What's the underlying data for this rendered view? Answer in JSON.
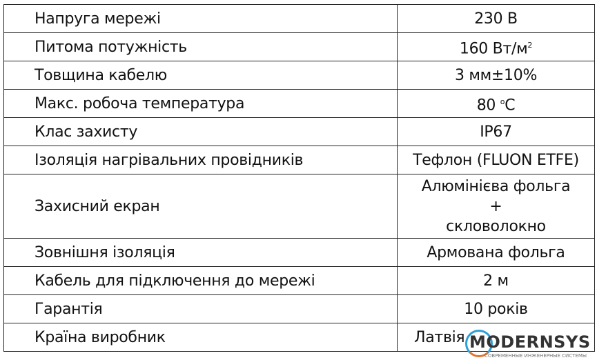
{
  "rows": [
    {
      "param": "Напруга мережі",
      "value": "230 В"
    },
    {
      "param": "Питома потужність",
      "value": "160 Вт/м",
      "sup": "2"
    },
    {
      "param": "Товщина кабелю",
      "value": "3 мм±10%"
    },
    {
      "param": "Макс. робоча температура",
      "value": "80 ",
      "sup": "о",
      "suffix": "С"
    },
    {
      "param": "Клас захисту",
      "value": "IP67"
    },
    {
      "param": "Ізоляція нагрівальних провідників",
      "value": "Тефлон (FLUON ETFE)"
    },
    {
      "param": "Захисний екран",
      "value_lines": [
        "Алюмінієва фольга",
        "+",
        "скловолокно"
      ]
    },
    {
      "param": "Зовнішня ізоляція",
      "value": "Армована фольга"
    },
    {
      "param": "Кабель для підключення до мережі",
      "value": "2 м"
    },
    {
      "param": "Гарантія",
      "value": "10 років"
    },
    {
      "param": "Країна виробник",
      "value": "Латвія"
    }
  ],
  "watermark": {
    "brand": "MODERNSYS",
    "tagline": "СОВРЕМЕННЫЕ ИНЖЕНЕРНЫЕ СИСТЕМЫ",
    "colors": {
      "ring_blue": "#2aa0d8",
      "ring_orange": "#e8722a"
    }
  }
}
